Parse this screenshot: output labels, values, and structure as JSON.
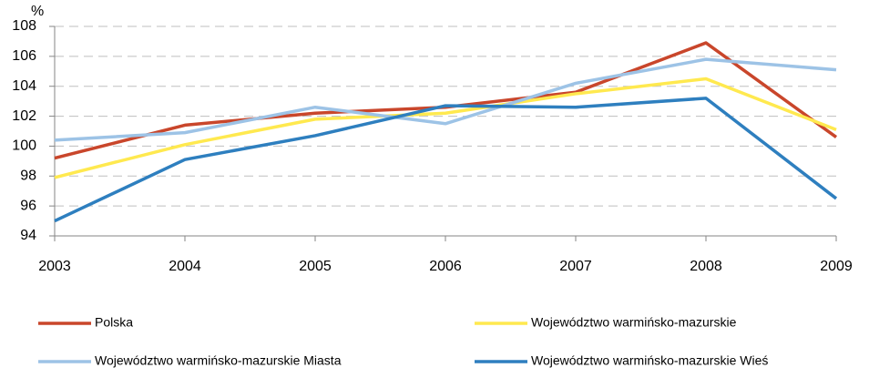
{
  "chart_data": {
    "type": "line",
    "y_unit": "%",
    "categories": [
      "2003",
      "2004",
      "2005",
      "2006",
      "2007",
      "2008",
      "2009"
    ],
    "series": [
      {
        "name": "Polska",
        "color": "#c9462b",
        "values": [
          99.2,
          101.4,
          102.2,
          102.6,
          103.6,
          106.9,
          100.6
        ]
      },
      {
        "name": "Województwo warmińsko-mazurskie",
        "color": "#ffe94f",
        "values": [
          97.9,
          100.1,
          101.8,
          102.2,
          103.5,
          104.5,
          101.1
        ]
      },
      {
        "name": "Województwo warmińsko-mazurskie Miasta",
        "color": "#9dc3e6",
        "values": [
          100.4,
          100.9,
          102.6,
          101.5,
          104.2,
          105.8,
          105.1
        ]
      },
      {
        "name": "Województwo warmińsko-mazurskie Wieś",
        "color": "#2e7fbf",
        "values": [
          95.0,
          99.1,
          100.7,
          102.7,
          102.6,
          103.2,
          96.5
        ]
      }
    ],
    "ylim": [
      94,
      108
    ],
    "yticks": [
      94,
      96,
      98,
      100,
      102,
      104,
      106,
      108
    ],
    "grid": true
  }
}
